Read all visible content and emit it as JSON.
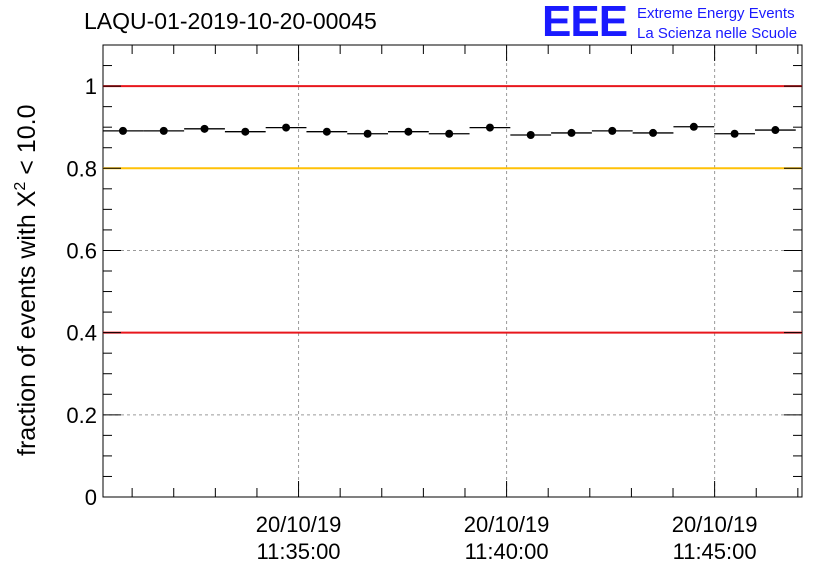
{
  "chart_data": {
    "type": "scatter",
    "title": "LAQU-01-2019-10-20-00045",
    "ylabel": "fraction of events with",
    "ylabel_symbol": "X",
    "ylabel_superscript": "2",
    "ylabel_suffix": "< 10.0",
    "xlabel": "",
    "ylim": [
      0,
      1.1
    ],
    "y_ticks": [
      0,
      0.2,
      0.4,
      0.6,
      0.8,
      1
    ],
    "y_tick_labels": [
      "0",
      "0.2",
      "0.4",
      "0.6",
      "0.8",
      "1"
    ],
    "x_range_minutes": [
      0,
      16.8
    ],
    "x_ticks_minutes": [
      4.7,
      9.7,
      14.7
    ],
    "x_tick_labels": [
      {
        "date": "20/10/19",
        "time": "11:35:00"
      },
      {
        "date": "20/10/19",
        "time": "11:40:00"
      },
      {
        "date": "20/10/19",
        "time": "11:45:00"
      }
    ],
    "grid": true,
    "bin_width_minutes": 0.98,
    "points_minutes": [
      0.48,
      1.46,
      2.44,
      3.42,
      4.4,
      5.38,
      6.36,
      7.34,
      8.32,
      9.3,
      10.28,
      11.26,
      12.24,
      13.22,
      14.2,
      15.18,
      16.16
    ],
    "points_y": [
      0.891,
      0.891,
      0.896,
      0.889,
      0.899,
      0.889,
      0.884,
      0.889,
      0.884,
      0.899,
      0.881,
      0.886,
      0.891,
      0.886,
      0.901,
      0.884,
      0.893
    ],
    "reference_lines": [
      {
        "name": "upper-red-line",
        "y": 1.0,
        "color": "#e8161c"
      },
      {
        "name": "yellow-line",
        "y": 0.8,
        "color": "#ffc107"
      },
      {
        "name": "lower-red-line",
        "y": 0.4,
        "color": "#e8161c"
      }
    ]
  },
  "logo": {
    "mark": "EEE",
    "line1": "Extreme Energy Events",
    "line2": "La Scienza nelle Scuole",
    "color": "#1a1aff"
  }
}
